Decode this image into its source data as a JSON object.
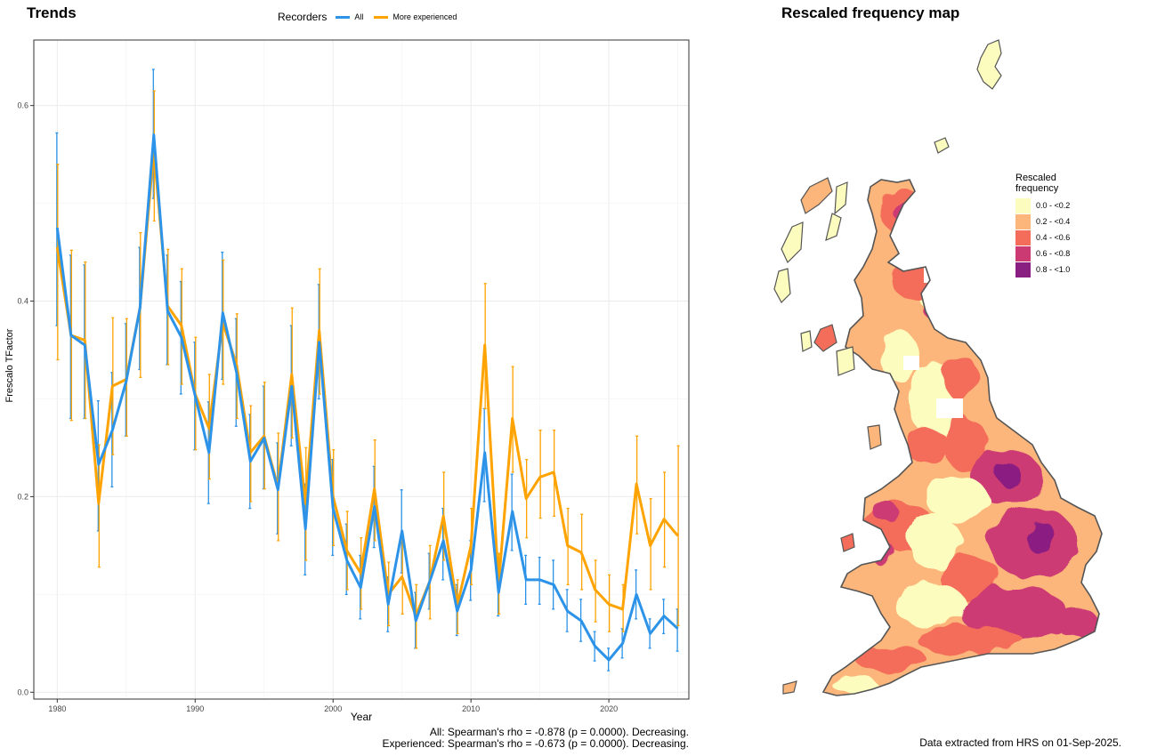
{
  "left_title": "Trends",
  "right_title": "Rescaled frequency map",
  "recorders_legend": {
    "title": "Recorders",
    "items": [
      {
        "label": "All",
        "color": "#2c93e8"
      },
      {
        "label": "More experienced",
        "color": "#ffa300"
      }
    ]
  },
  "map_legend": {
    "title_line1": "Rescaled",
    "title_line2": "frequency",
    "bins": [
      {
        "label": "0.0 - <0.2",
        "color": "#fdfcbf"
      },
      {
        "label": "0.2 - <0.4",
        "color": "#fcb57a"
      },
      {
        "label": "0.4 - <0.6",
        "color": "#f46d5a"
      },
      {
        "label": "0.6 - <0.8",
        "color": "#cc3a73"
      },
      {
        "label": "0.8 - <1.0",
        "color": "#8a1f82"
      }
    ]
  },
  "stats_line1": "All: Spearman's rho = -0.878 (p = 0.0000). Decreasing.",
  "stats_line2": "Experienced: Spearman's rho = -0.673 (p = 0.0000). Decreasing.",
  "data_note": "Data extracted from HRS on 01-Sep-2025.",
  "chart_data": {
    "type": "line",
    "title": "Trends",
    "xlabel": "Year",
    "ylabel": "Frescalo TFactor",
    "xlim": [
      1978.3,
      2025.8
    ],
    "ylim": [
      -0.007,
      0.667
    ],
    "xticks": [
      1980,
      1990,
      2000,
      2010,
      2020
    ],
    "yticks": [
      0.0,
      0.2,
      0.4,
      0.6
    ],
    "ytick_labels": [
      "0.0",
      "0.2",
      "0.4",
      "0.6"
    ],
    "grid": true,
    "legend_position": "top",
    "x": [
      1980,
      1981,
      1982,
      1983,
      1984,
      1985,
      1986,
      1987,
      1988,
      1989,
      1990,
      1991,
      1992,
      1993,
      1994,
      1995,
      1996,
      1997,
      1998,
      1999,
      2000,
      2001,
      2002,
      2003,
      2004,
      2005,
      2006,
      2007,
      2008,
      2009,
      2010,
      2011,
      2012,
      2013,
      2014,
      2015,
      2016,
      2017,
      2018,
      2019,
      2020,
      2021,
      2022,
      2023,
      2024,
      2025
    ],
    "series": [
      {
        "name": "All",
        "color": "#2c93e8",
        "values": [
          0.475,
          0.365,
          0.355,
          0.233,
          0.268,
          0.318,
          0.393,
          0.57,
          0.39,
          0.363,
          0.303,
          0.245,
          0.388,
          0.327,
          0.236,
          0.26,
          0.207,
          0.313,
          0.167,
          0.358,
          0.188,
          0.135,
          0.107,
          0.19,
          0.09,
          0.165,
          0.073,
          0.113,
          0.155,
          0.083,
          0.125,
          0.245,
          0.102,
          0.185,
          0.115,
          0.115,
          0.11,
          0.083,
          0.073,
          0.047,
          0.033,
          0.05,
          0.1,
          0.06,
          0.078,
          0.065
        ],
        "lower": [
          0.375,
          0.28,
          0.28,
          0.165,
          0.21,
          0.262,
          0.33,
          0.505,
          0.335,
          0.305,
          0.248,
          0.193,
          0.32,
          0.272,
          0.188,
          0.208,
          0.162,
          0.252,
          0.12,
          0.3,
          0.14,
          0.1,
          0.075,
          0.148,
          0.062,
          0.122,
          0.045,
          0.085,
          0.115,
          0.058,
          0.094,
          0.195,
          0.078,
          0.145,
          0.09,
          0.09,
          0.085,
          0.062,
          0.052,
          0.032,
          0.022,
          0.035,
          0.075,
          0.045,
          0.06,
          0.042
        ],
        "upper": [
          0.572,
          0.447,
          0.437,
          0.298,
          0.327,
          0.377,
          0.455,
          0.637,
          0.447,
          0.42,
          0.358,
          0.297,
          0.45,
          0.382,
          0.284,
          0.313,
          0.255,
          0.375,
          0.213,
          0.417,
          0.238,
          0.172,
          0.14,
          0.231,
          0.118,
          0.207,
          0.102,
          0.142,
          0.188,
          0.11,
          0.155,
          0.29,
          0.126,
          0.223,
          0.14,
          0.138,
          0.135,
          0.105,
          0.095,
          0.062,
          0.045,
          0.065,
          0.125,
          0.075,
          0.095,
          0.085
        ]
      },
      {
        "name": "More experienced",
        "color": "#ffa300",
        "values": [
          0.455,
          0.365,
          0.36,
          0.193,
          0.313,
          0.32,
          0.393,
          0.555,
          0.395,
          0.375,
          0.305,
          0.27,
          0.378,
          0.335,
          0.245,
          0.262,
          0.21,
          0.325,
          0.193,
          0.37,
          0.2,
          0.145,
          0.122,
          0.208,
          0.1,
          0.118,
          0.078,
          0.113,
          0.18,
          0.088,
          0.15,
          0.355,
          0.11,
          0.28,
          0.198,
          0.22,
          0.225,
          0.15,
          0.143,
          0.105,
          0.09,
          0.085,
          0.213,
          0.15,
          0.177,
          0.16
        ],
        "lower": [
          0.34,
          0.278,
          0.28,
          0.128,
          0.243,
          0.262,
          0.322,
          0.482,
          0.335,
          0.315,
          0.248,
          0.218,
          0.315,
          0.28,
          0.195,
          0.208,
          0.155,
          0.26,
          0.135,
          0.305,
          0.15,
          0.105,
          0.085,
          0.155,
          0.068,
          0.08,
          0.045,
          0.075,
          0.135,
          0.06,
          0.11,
          0.29,
          0.08,
          0.225,
          0.158,
          0.178,
          0.18,
          0.11,
          0.105,
          0.072,
          0.062,
          0.062,
          0.162,
          0.105,
          0.128,
          0.068
        ],
        "upper": [
          0.54,
          0.452,
          0.44,
          0.253,
          0.383,
          0.382,
          0.47,
          0.615,
          0.453,
          0.433,
          0.363,
          0.325,
          0.442,
          0.387,
          0.293,
          0.317,
          0.265,
          0.393,
          0.25,
          0.433,
          0.248,
          0.185,
          0.158,
          0.258,
          0.133,
          0.155,
          0.11,
          0.15,
          0.225,
          0.115,
          0.188,
          0.418,
          0.142,
          0.333,
          0.238,
          0.268,
          0.268,
          0.188,
          0.182,
          0.135,
          0.12,
          0.11,
          0.262,
          0.198,
          0.225,
          0.252
        ]
      }
    ]
  }
}
